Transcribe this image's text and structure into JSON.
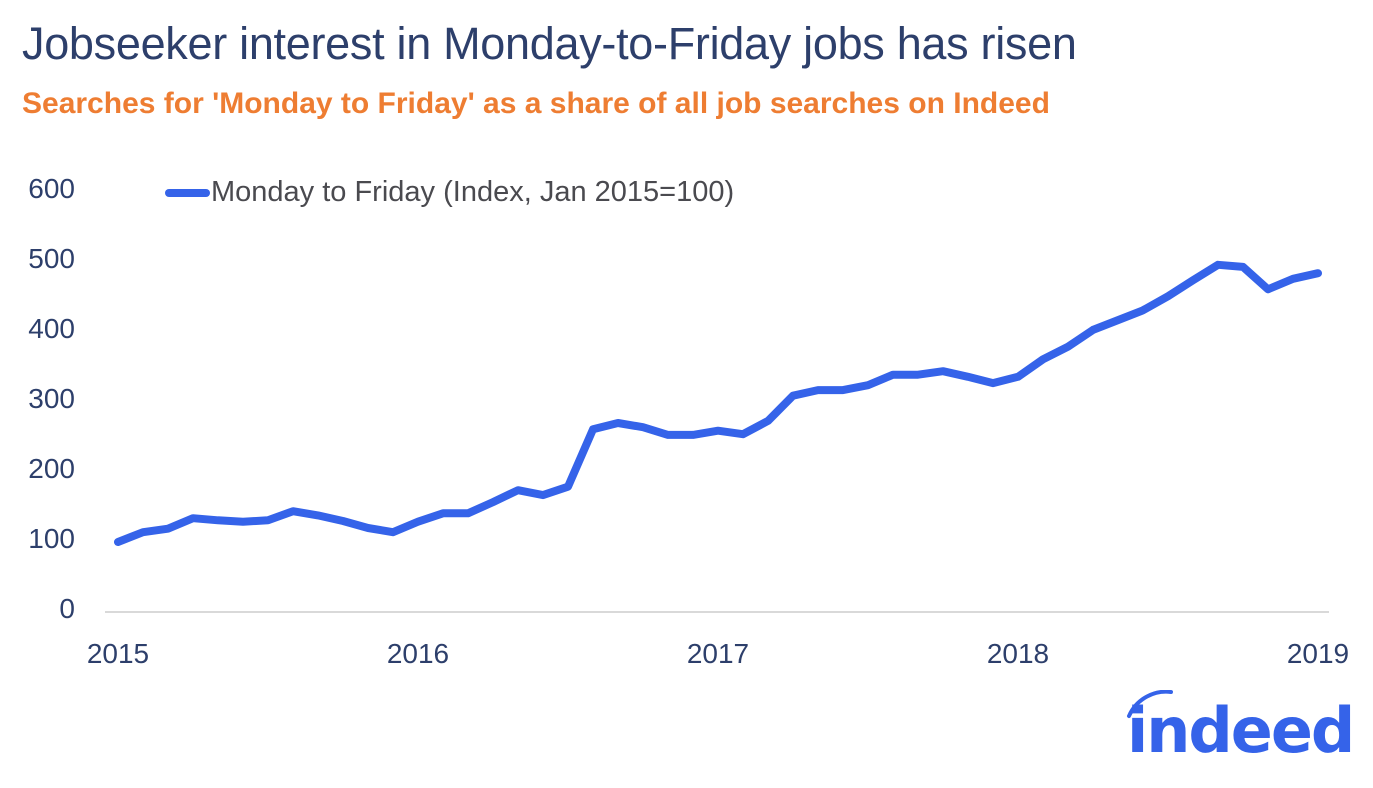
{
  "header": {
    "title": "Jobseeker interest in Monday-to-Friday jobs has risen",
    "subtitle": "Searches for 'Monday to Friday' as a share of all job searches on Indeed"
  },
  "legend": {
    "label": "Monday to Friday (Index, Jan 2015=100)",
    "color": "#3563e9"
  },
  "axes": {
    "y_ticks": [
      "600",
      "500",
      "400",
      "300",
      "200",
      "100",
      "0"
    ],
    "x_ticks": [
      "2015",
      "2016",
      "2017",
      "2018",
      "2019"
    ]
  },
  "logo": {
    "text": "indeed",
    "color": "#3563e9"
  },
  "colors": {
    "title": "#2d3f6b",
    "subtitle": "#ee7d32",
    "series": "#3563e9",
    "axis": "#d9d9d9"
  },
  "chart_data": {
    "type": "line",
    "title": "Jobseeker interest in Monday-to-Friday jobs has risen",
    "subtitle": "Searches for 'Monday to Friday' as a share of all job searches on Indeed",
    "xlabel": "",
    "ylabel": "",
    "ylim": [
      0,
      600
    ],
    "yticks": [
      0,
      100,
      200,
      300,
      400,
      500,
      600
    ],
    "xticks": [
      "2015",
      "2016",
      "2017",
      "2018",
      "2019"
    ],
    "grid": false,
    "legend_position": "top-left",
    "x": [
      "2015-01",
      "2015-02",
      "2015-03",
      "2015-04",
      "2015-05",
      "2015-06",
      "2015-07",
      "2015-08",
      "2015-09",
      "2015-10",
      "2015-11",
      "2015-12",
      "2016-01",
      "2016-02",
      "2016-03",
      "2016-04",
      "2016-05",
      "2016-06",
      "2016-07",
      "2016-08",
      "2016-09",
      "2016-10",
      "2016-11",
      "2016-12",
      "2017-01",
      "2017-02",
      "2017-03",
      "2017-04",
      "2017-05",
      "2017-06",
      "2017-07",
      "2017-08",
      "2017-09",
      "2017-10",
      "2017-11",
      "2017-12",
      "2018-01",
      "2018-02",
      "2018-03",
      "2018-04",
      "2018-05",
      "2018-06",
      "2018-07",
      "2018-08",
      "2018-09",
      "2018-10",
      "2018-11",
      "2018-12",
      "2019-01"
    ],
    "series": [
      {
        "name": "Monday to Friday (Index, Jan 2015=100)",
        "color": "#3563e9",
        "values": [
          100,
          114,
          119,
          134,
          131,
          129,
          131,
          144,
          138,
          130,
          120,
          114,
          129,
          141,
          141,
          157,
          174,
          167,
          179,
          261,
          270,
          264,
          253,
          253,
          259,
          254,
          273,
          309,
          317,
          317,
          324,
          339,
          339,
          344,
          336,
          327,
          336,
          361,
          379,
          403,
          417,
          431,
          451,
          474,
          496,
          493,
          461,
          476,
          484
        ]
      }
    ]
  }
}
